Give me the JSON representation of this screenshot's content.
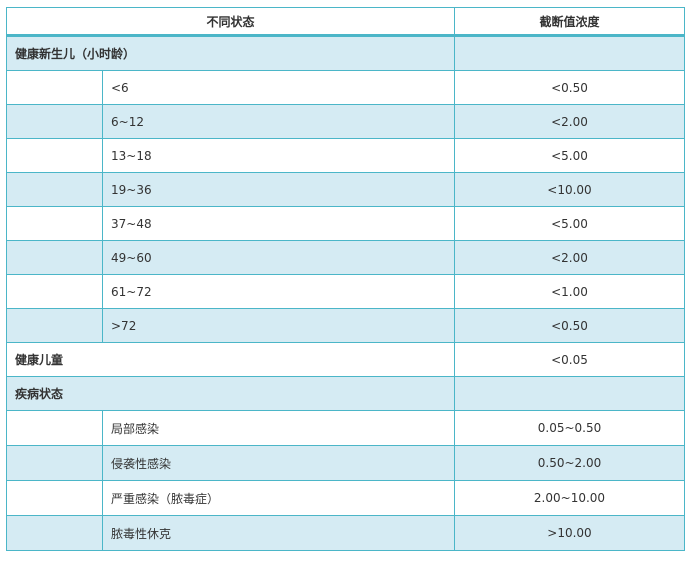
{
  "headers": {
    "condition": "不同状态",
    "cutoff": "截断值浓度"
  },
  "groups": {
    "newborn": {
      "label": "健康新生儿（小时龄）",
      "rows": [
        {
          "age": "<6",
          "value": "<0.50"
        },
        {
          "age": "6~12",
          "value": "<2.00"
        },
        {
          "age": "13~18",
          "value": "<5.00"
        },
        {
          "age": "19~36",
          "value": "<10.00"
        },
        {
          "age": "37~48",
          "value": "<5.00"
        },
        {
          "age": "49~60",
          "value": "<2.00"
        },
        {
          "age": "61~72",
          "value": "<1.00"
        },
        {
          "age": ">72",
          "value": "<0.50"
        }
      ]
    },
    "children": {
      "label": "健康儿童",
      "value": "<0.05"
    },
    "disease": {
      "label": "疾病状态",
      "rows": [
        {
          "state": "局部感染",
          "value": "0.05~0.50"
        },
        {
          "state": "侵袭性感染",
          "value": "0.50~2.00"
        },
        {
          "state": "严重感染（脓毒症）",
          "value": "2.00~10.00"
        },
        {
          "state": "脓毒性休克",
          "value": ">10.00"
        }
      ]
    }
  },
  "colors": {
    "border": "#4bb6c8",
    "stripe": "#d5ebf3"
  }
}
